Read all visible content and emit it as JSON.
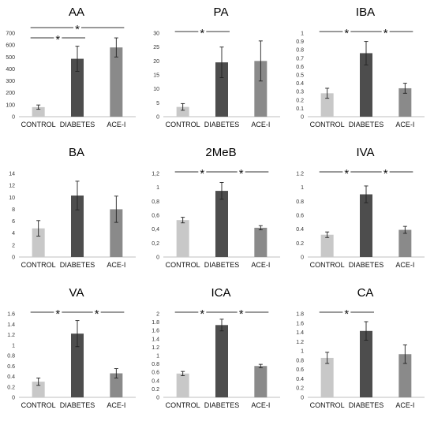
{
  "chart_data": [
    {
      "type": "bar",
      "title": "AA",
      "categories": [
        "CONTROL",
        "DIABETES",
        "ACE-I"
      ],
      "values": [
        80,
        485,
        580
      ],
      "errors": [
        18,
        105,
        80
      ],
      "ylim": [
        0,
        700
      ],
      "ticks": [
        "0",
        "100",
        "200",
        "300",
        "400",
        "500",
        "600",
        "700"
      ],
      "significance": [
        {
          "from": 0,
          "to": 1
        },
        {
          "from": 0,
          "to": 2
        }
      ]
    },
    {
      "type": "bar",
      "title": "PA",
      "categories": [
        "CONTROL",
        "DIABETES",
        "ACE-I"
      ],
      "values": [
        3.5,
        19.5,
        20
      ],
      "errors": [
        1.2,
        5.5,
        7.2
      ],
      "ylim": [
        0,
        30
      ],
      "ticks": [
        "0",
        "5",
        "10",
        "15",
        "20",
        "25",
        "30"
      ],
      "significance": [
        {
          "from": 0,
          "to": 1
        }
      ]
    },
    {
      "type": "bar",
      "title": "IBA",
      "categories": [
        "CONTROL",
        "DIABETES",
        "ACE-I"
      ],
      "values": [
        0.28,
        0.76,
        0.34
      ],
      "errors": [
        0.06,
        0.14,
        0.06
      ],
      "ylim": [
        0,
        1
      ],
      "ticks": [
        "0",
        "0.1",
        "0.2",
        "0.3",
        "0.4",
        "0.5",
        "0.6",
        "0.7",
        "0.8",
        "0.9",
        "1"
      ],
      "significance": [
        {
          "from": 0,
          "to": 1
        },
        {
          "from": 1,
          "to": 2
        }
      ]
    },
    {
      "type": "bar",
      "title": "BA",
      "categories": [
        "CONTROL",
        "DIABETES",
        "ACE-I"
      ],
      "values": [
        4.8,
        10.3,
        8
      ],
      "errors": [
        1.3,
        2.4,
        2.2
      ],
      "ylim": [
        0,
        14
      ],
      "ticks": [
        "0",
        "2",
        "4",
        "6",
        "8",
        "10",
        "12",
        "14"
      ],
      "significance": []
    },
    {
      "type": "bar",
      "title": "2MeB",
      "categories": [
        "CONTROL",
        "DIABETES",
        "ACE-I"
      ],
      "values": [
        0.53,
        0.95,
        0.42
      ],
      "errors": [
        0.04,
        0.12,
        0.03
      ],
      "ylim": [
        0,
        1.2
      ],
      "ticks": [
        "0",
        "0,2",
        "0,4",
        "0,6",
        "0,8",
        "1",
        "1,2"
      ],
      "significance": [
        {
          "from": 0,
          "to": 1
        },
        {
          "from": 1,
          "to": 2
        }
      ]
    },
    {
      "type": "bar",
      "title": "IVA",
      "categories": [
        "CONTROL",
        "DIABETES",
        "ACE-I"
      ],
      "values": [
        0.32,
        0.9,
        0.39
      ],
      "errors": [
        0.04,
        0.12,
        0.05
      ],
      "ylim": [
        0,
        1.2
      ],
      "ticks": [
        "0",
        "0.2",
        "0.4",
        "0.6",
        "0.8",
        "1",
        "1.2"
      ],
      "significance": [
        {
          "from": 0,
          "to": 1
        },
        {
          "from": 1,
          "to": 2
        }
      ]
    },
    {
      "type": "bar",
      "title": "VA",
      "categories": [
        "CONTROL",
        "DIABETES",
        "ACE-I"
      ],
      "values": [
        0.3,
        1.22,
        0.46
      ],
      "errors": [
        0.07,
        0.25,
        0.09
      ],
      "ylim": [
        0,
        1.6
      ],
      "ticks": [
        "0",
        "0.2",
        "0.4",
        "0.6",
        "0.8",
        "1",
        "1.2",
        "1.4",
        "1.6"
      ],
      "significance": [
        {
          "from": 0,
          "to": 1
        },
        {
          "from": 1,
          "to": 2
        }
      ]
    },
    {
      "type": "bar",
      "title": "ICA",
      "categories": [
        "CONTROL",
        "DIABETES",
        "ACE-I"
      ],
      "values": [
        0.57,
        1.73,
        0.75
      ],
      "errors": [
        0.05,
        0.14,
        0.04
      ],
      "ylim": [
        0,
        2
      ],
      "ticks": [
        "0",
        "0.2",
        "0.4",
        "0.6",
        "0.8",
        "1",
        "1.2",
        "1.4",
        "1.6",
        "1.8",
        "2"
      ],
      "significance": [
        {
          "from": 0,
          "to": 1
        },
        {
          "from": 1,
          "to": 2
        }
      ]
    },
    {
      "type": "bar",
      "title": "CA",
      "categories": [
        "CONTROL",
        "DIABETES",
        "ACE-I"
      ],
      "values": [
        0.85,
        1.43,
        0.93
      ],
      "errors": [
        0.12,
        0.2,
        0.2
      ],
      "ylim": [
        0,
        1.8
      ],
      "ticks": [
        "0",
        "0.2",
        "0.4",
        "0.6",
        "0.8",
        "1",
        "1.2",
        "1.4",
        "1.6",
        "1.8"
      ],
      "significance": [
        {
          "from": 0,
          "to": 1
        }
      ]
    }
  ],
  "colors": {
    "bars": [
      "#c8c8c8",
      "#4d4d4d",
      "#8a8a8a"
    ],
    "axis": "#bfbfbf",
    "error": "#222222"
  },
  "significance_marker": "*"
}
